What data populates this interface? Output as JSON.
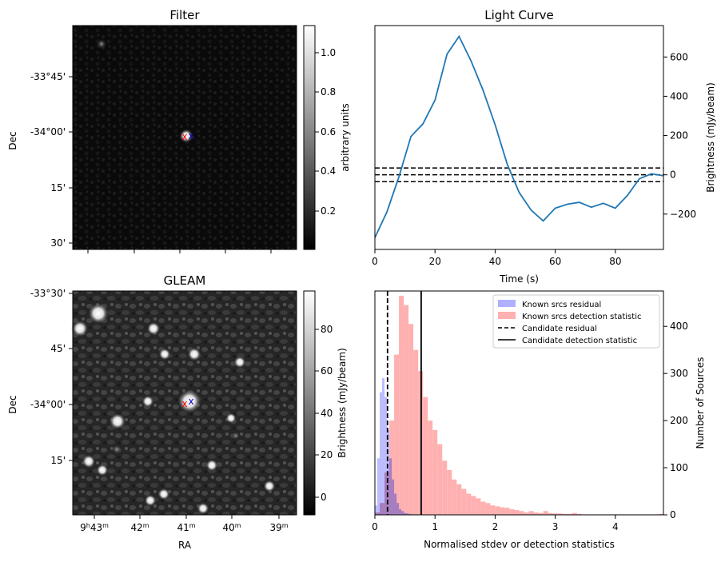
{
  "colors": {
    "line": "#1f77b4",
    "residual_hist": "#b0b0ff",
    "detection_hist": "#ffb0b0",
    "overlap_hist": "#a070b0",
    "red_marker": "#ff0000",
    "blue_marker": "#0000cc"
  },
  "panels": {
    "filter": {
      "title": "Filter",
      "ylabel": "Dec",
      "yticks": [
        "-33°45'",
        "-34°00'",
        "15'",
        "30'"
      ],
      "colorbar_label": "arbitrary units",
      "colorbar_ticks": [
        "1.0",
        "0.8",
        "0.6",
        "0.4",
        "0.2"
      ],
      "markers": [
        "x",
        "x"
      ]
    },
    "gleam": {
      "title": "GLEAM",
      "ylabel": "Dec",
      "xlabel": "RA",
      "yticks": [
        "-33°30'",
        "45'",
        "-34°00'",
        "15'"
      ],
      "xticks": [
        "9h43m",
        "42m",
        "41m",
        "40m",
        "39m"
      ],
      "colorbar_label": "Brightness (mJy/beam)",
      "colorbar_ticks": [
        "80",
        "60",
        "40",
        "20",
        "0"
      ],
      "markers": [
        "x",
        "x"
      ]
    }
  },
  "chart_data": [
    {
      "type": "line",
      "title": "Light Curve",
      "xlabel": "Time (s)",
      "ylabel": "Brightness (mJy/beam)",
      "xlim": [
        0,
        96
      ],
      "ylim": [
        -380,
        760
      ],
      "xticks": [
        0,
        20,
        40,
        60,
        80
      ],
      "yticks": [
        -200,
        0,
        200,
        400,
        600
      ],
      "x": [
        0,
        4,
        8,
        12,
        16,
        20,
        24,
        28,
        32,
        36,
        40,
        44,
        48,
        52,
        56,
        60,
        64,
        68,
        72,
        76,
        80,
        84,
        88,
        92,
        96
      ],
      "y": [
        -320,
        -190,
        -10,
        195,
        260,
        380,
        615,
        705,
        580,
        430,
        255,
        55,
        -90,
        -180,
        -235,
        -170,
        -150,
        -140,
        -165,
        -145,
        -170,
        -105,
        -20,
        5,
        -5
      ],
      "hlines": [
        35,
        0,
        -35
      ],
      "hline_style": "dashed"
    },
    {
      "type": "bar",
      "xlabel": "Normalised stdev or detection statistics",
      "ylabel": "Number of Sources",
      "xlim": [
        0,
        4.8
      ],
      "ylim": [
        0,
        475
      ],
      "xticks": [
        0,
        1,
        2,
        3,
        4
      ],
      "yticks": [
        0,
        100,
        200,
        300,
        400
      ],
      "bin_width": 0.08,
      "legend": [
        "Known srcs residual",
        "Known srcs detection statistic",
        "Candidate residual",
        "Candidate detection statistic"
      ],
      "legend_position": "top-right",
      "candidate_residual": 0.21,
      "candidate_detection": 0.77,
      "series": [
        {
          "name": "Known srcs residual",
          "values": [
            20,
            120,
            260,
            290,
            250,
            180,
            120,
            75,
            45,
            25,
            12,
            8,
            4,
            3,
            2,
            1,
            1,
            1
          ]
        },
        {
          "name": "Known srcs detection statistic",
          "values": [
            5,
            25,
            90,
            200,
            340,
            465,
            445,
            405,
            350,
            305,
            250,
            200,
            180,
            150,
            115,
            95,
            75,
            65,
            55,
            45,
            40,
            35,
            28,
            25,
            20,
            18,
            16,
            15,
            12,
            10,
            8,
            5,
            8,
            5,
            4,
            8,
            4,
            3,
            3,
            2,
            2,
            4,
            2,
            1,
            1,
            1,
            1,
            1,
            1,
            1,
            1,
            1,
            1,
            1,
            1,
            1,
            1,
            1,
            1,
            2
          ]
        }
      ]
    }
  ]
}
